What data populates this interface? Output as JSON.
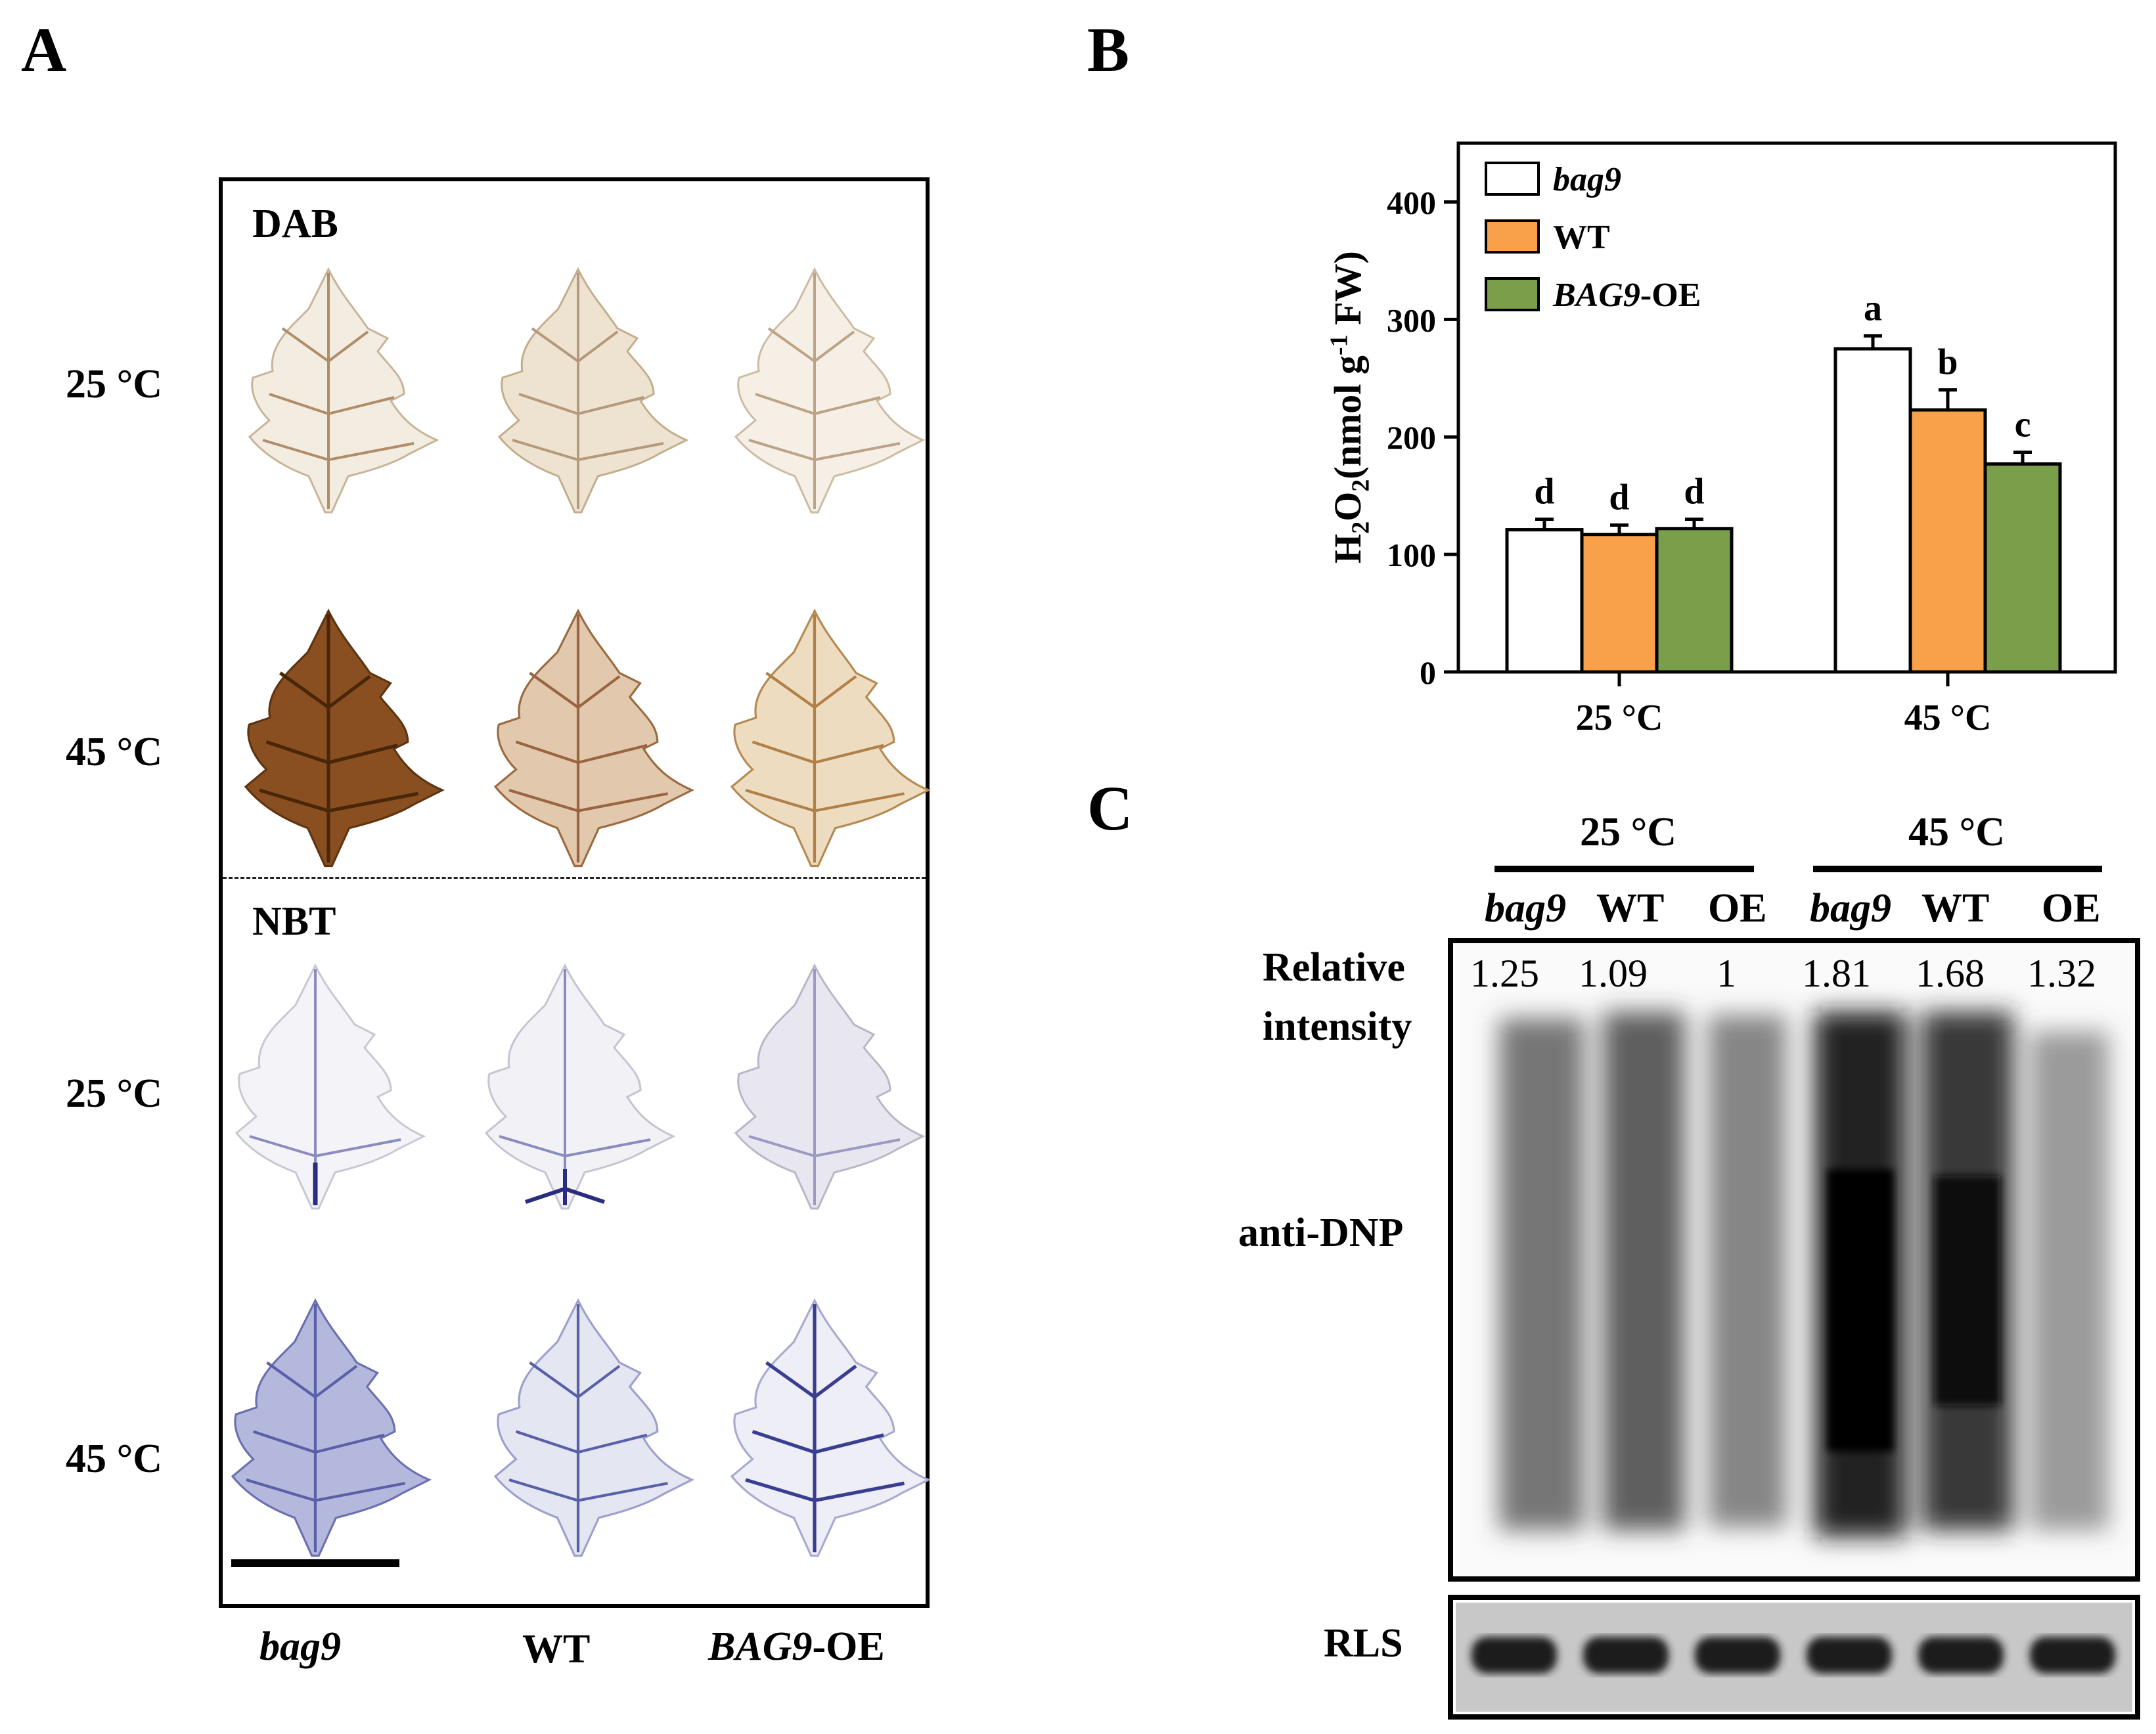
{
  "panel_a": {
    "letter": "A",
    "stain_dab": "DAB",
    "stain_nbt": "NBT",
    "rows": [
      "25 °C",
      "45 °C",
      "25 °C",
      "45 °C"
    ],
    "columns": [
      {
        "italic": "bag9",
        "plain": ""
      },
      {
        "italic": "",
        "plain": "WT"
      },
      {
        "italic": "BAG9",
        "plain": "-OE"
      }
    ]
  },
  "panel_b": {
    "letter": "B",
    "chart_data": {
      "type": "bar",
      "ylabel": "H2O2(nmol g-1 FW)",
      "categories": [
        "25 °C",
        "45 °C"
      ],
      "ylim": [
        0,
        450
      ],
      "yticks": [
        0,
        100,
        200,
        300,
        400
      ],
      "series": [
        {
          "name": "bag9",
          "color": "#ffffff",
          "values": [
            121,
            275
          ],
          "errors": [
            9,
            11
          ],
          "letters": [
            "d",
            "a"
          ]
        },
        {
          "name": "WT",
          "color": "#f9a04b",
          "values": [
            117,
            223
          ],
          "errors": [
            8,
            17
          ],
          "letters": [
            "d",
            "b"
          ]
        },
        {
          "name": "BAG9-OE",
          "color": "#7a9e4a",
          "values": [
            122,
            177
          ],
          "errors": [
            8,
            10
          ],
          "letters": [
            "d",
            "c"
          ]
        }
      ],
      "legend": "top-left"
    }
  },
  "panel_c": {
    "letter": "C",
    "groups": [
      "25 °C",
      "45 °C"
    ],
    "lanes": [
      "bag9",
      "WT",
      "OE",
      "bag9",
      "WT",
      "OE"
    ],
    "relative_label_1": "Relative",
    "relative_label_2": "intensity",
    "relative_intensity": [
      "1.25",
      "1.09",
      "1",
      "1.81",
      "1.68",
      "1.32"
    ],
    "antibody": "anti-DNP",
    "loading": "RLS"
  }
}
